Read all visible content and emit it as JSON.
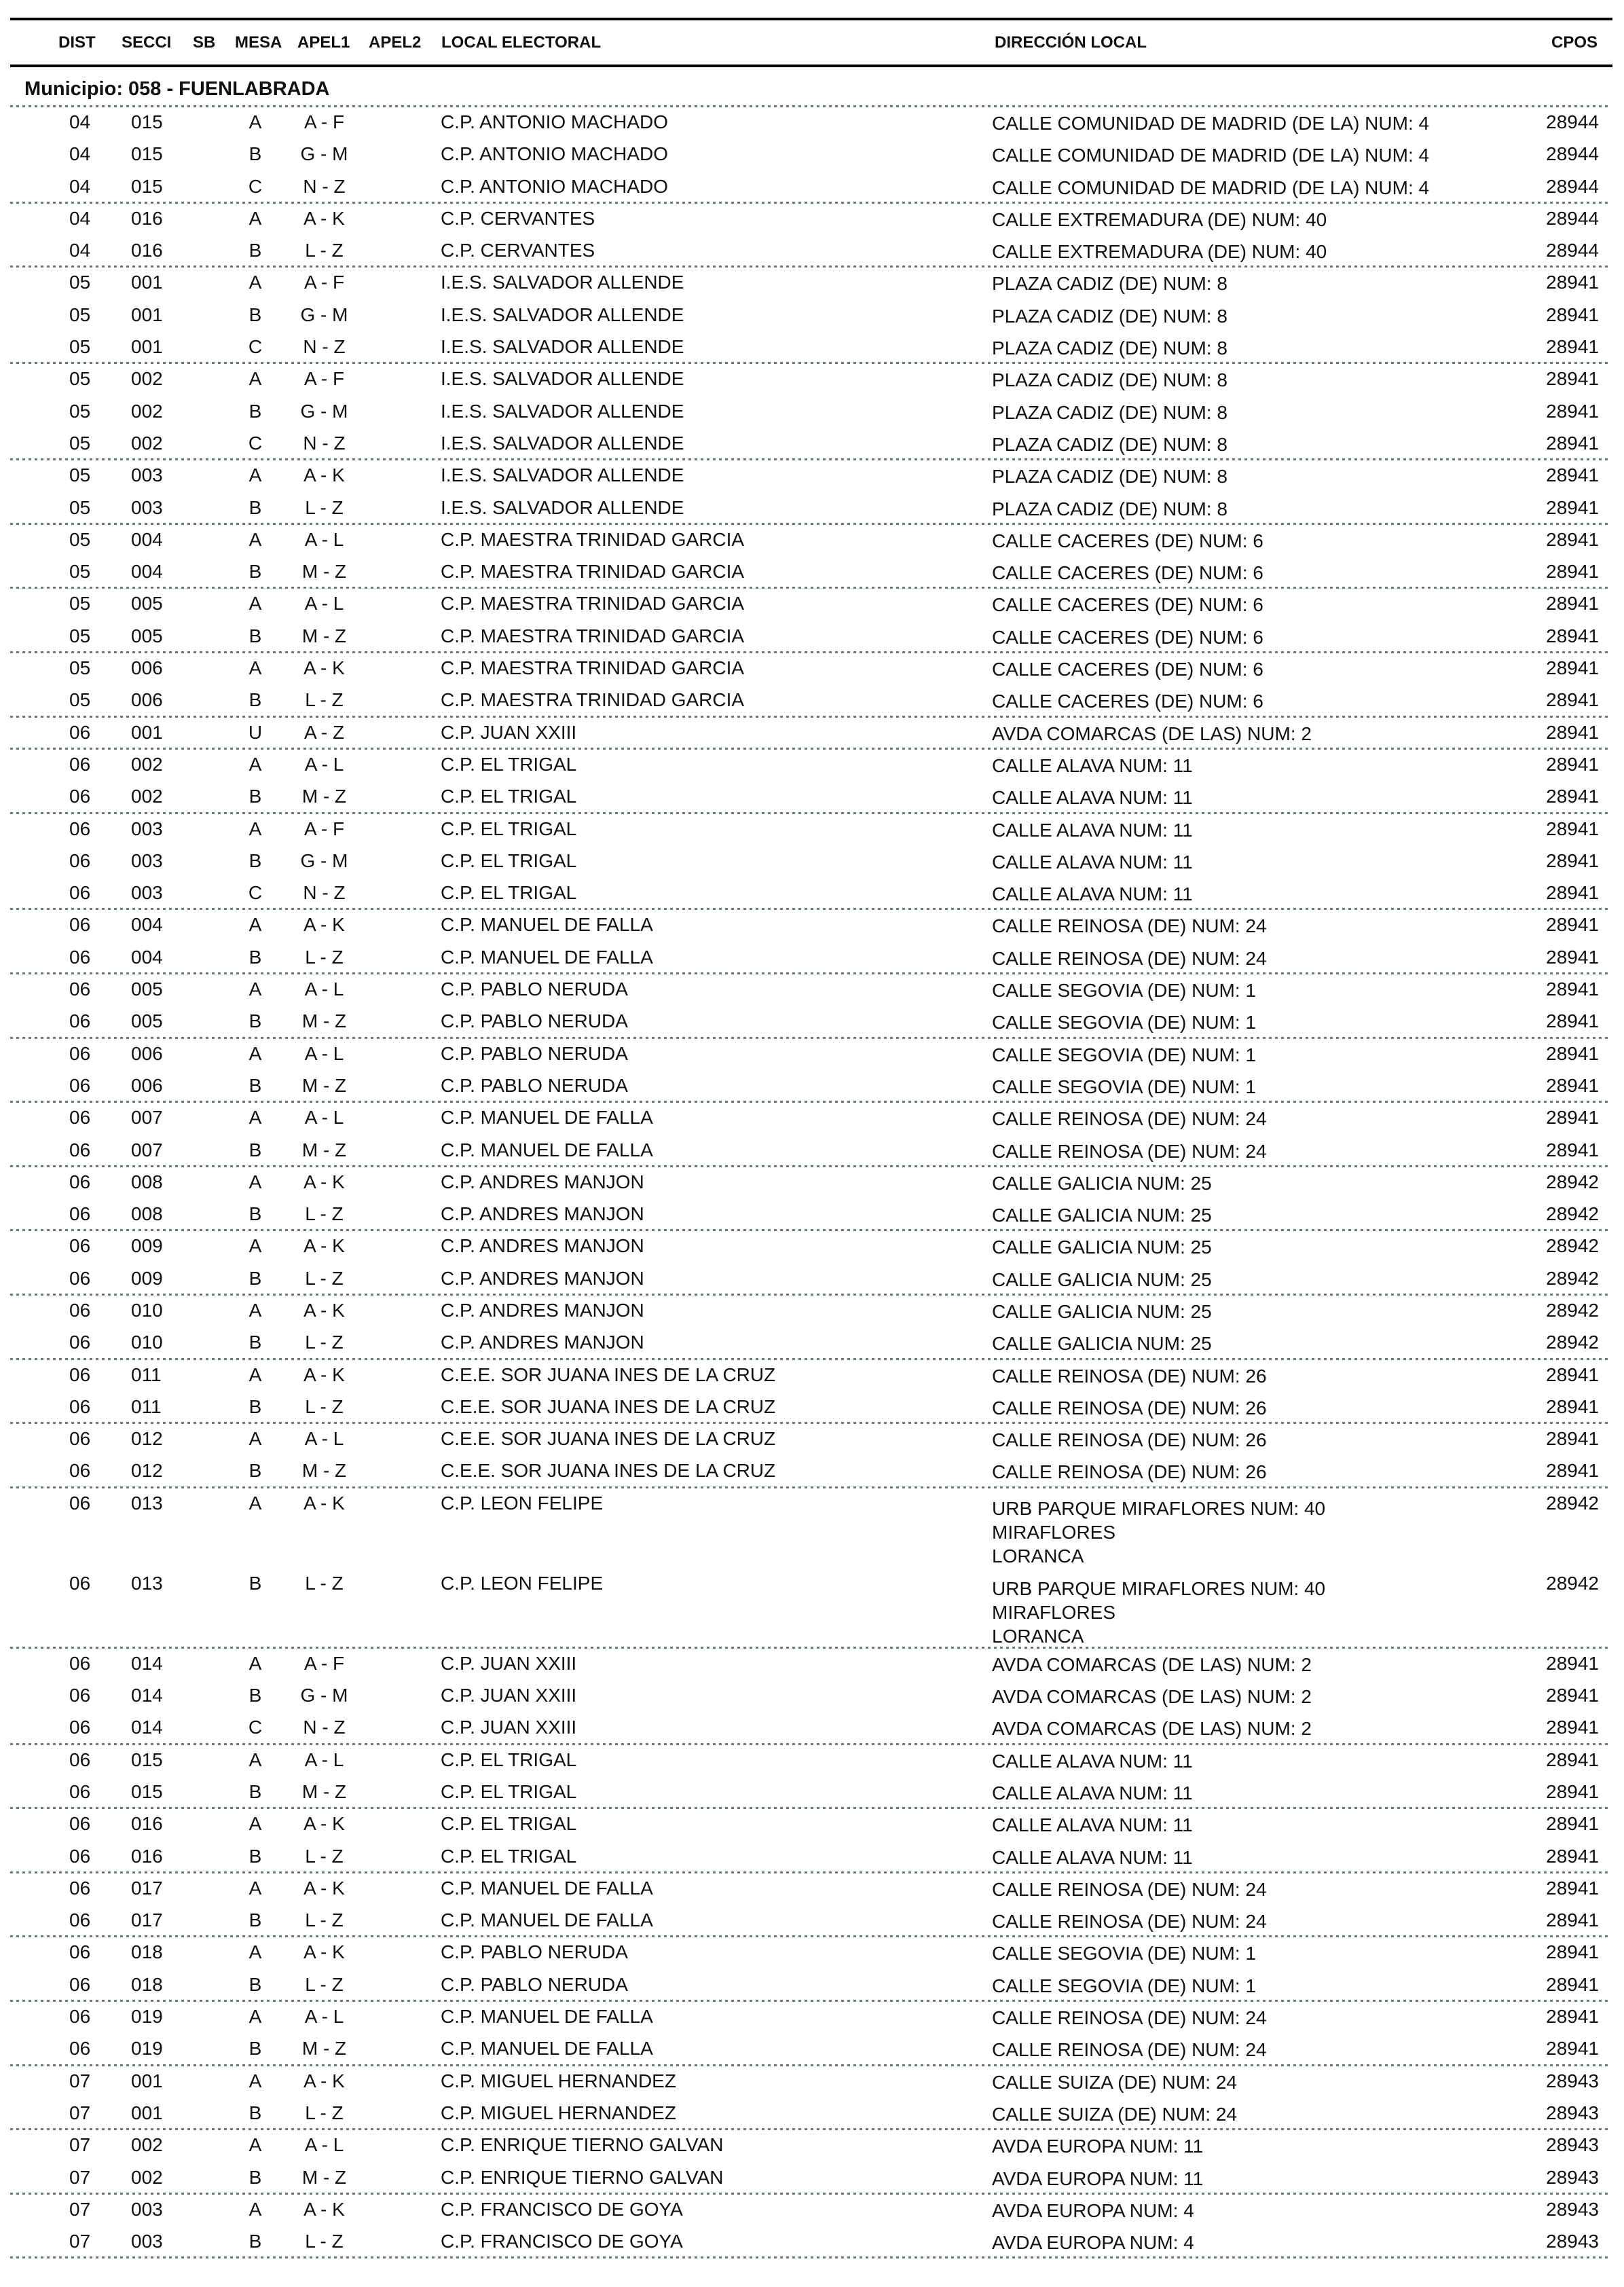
{
  "header": {
    "columns": [
      "DIST",
      "SECCI",
      "SB",
      "MESA",
      "APEL1",
      "APEL2",
      "LOCAL ELECTORAL",
      "DIRECCIÓN LOCAL",
      "CPOS"
    ]
  },
  "municipio": "Municipio:  058 - FUENLABRADA",
  "rows": [
    {
      "dist": "04",
      "secci": "015",
      "mesa": "A",
      "apel1": "A - F",
      "local": "C.P. ANTONIO MACHADO",
      "dir": [
        "CALLE COMUNIDAD DE MADRID (DE LA) NUM: 4"
      ],
      "cpos": "28944"
    },
    {
      "dist": "04",
      "secci": "015",
      "mesa": "B",
      "apel1": "G - M",
      "local": "C.P. ANTONIO MACHADO",
      "dir": [
        "CALLE COMUNIDAD DE MADRID (DE LA) NUM: 4"
      ],
      "cpos": "28944"
    },
    {
      "dist": "04",
      "secci": "015",
      "mesa": "C",
      "apel1": "N - Z",
      "local": "C.P. ANTONIO MACHADO",
      "dir": [
        "CALLE COMUNIDAD DE MADRID (DE LA) NUM: 4"
      ],
      "cpos": "28944"
    },
    {
      "dist": "04",
      "secci": "016",
      "mesa": "A",
      "apel1": "A - K",
      "local": "C.P. CERVANTES",
      "dir": [
        "CALLE EXTREMADURA (DE) NUM: 40"
      ],
      "cpos": "28944"
    },
    {
      "dist": "04",
      "secci": "016",
      "mesa": "B",
      "apel1": "L - Z",
      "local": "C.P. CERVANTES",
      "dir": [
        "CALLE EXTREMADURA (DE) NUM: 40"
      ],
      "cpos": "28944"
    },
    {
      "dist": "05",
      "secci": "001",
      "mesa": "A",
      "apel1": "A - F",
      "local": "I.E.S. SALVADOR ALLENDE",
      "dir": [
        "PLAZA CADIZ (DE) NUM: 8"
      ],
      "cpos": "28941"
    },
    {
      "dist": "05",
      "secci": "001",
      "mesa": "B",
      "apel1": "G - M",
      "local": "I.E.S. SALVADOR ALLENDE",
      "dir": [
        "PLAZA CADIZ (DE) NUM: 8"
      ],
      "cpos": "28941"
    },
    {
      "dist": "05",
      "secci": "001",
      "mesa": "C",
      "apel1": "N - Z",
      "local": "I.E.S. SALVADOR ALLENDE",
      "dir": [
        "PLAZA CADIZ (DE) NUM: 8"
      ],
      "cpos": "28941"
    },
    {
      "dist": "05",
      "secci": "002",
      "mesa": "A",
      "apel1": "A - F",
      "local": "I.E.S. SALVADOR ALLENDE",
      "dir": [
        "PLAZA CADIZ (DE) NUM: 8"
      ],
      "cpos": "28941"
    },
    {
      "dist": "05",
      "secci": "002",
      "mesa": "B",
      "apel1": "G - M",
      "local": "I.E.S. SALVADOR ALLENDE",
      "dir": [
        "PLAZA CADIZ (DE) NUM: 8"
      ],
      "cpos": "28941"
    },
    {
      "dist": "05",
      "secci": "002",
      "mesa": "C",
      "apel1": "N - Z",
      "local": "I.E.S. SALVADOR ALLENDE",
      "dir": [
        "PLAZA CADIZ (DE) NUM: 8"
      ],
      "cpos": "28941"
    },
    {
      "dist": "05",
      "secci": "003",
      "mesa": "A",
      "apel1": "A - K",
      "local": "I.E.S. SALVADOR ALLENDE",
      "dir": [
        "PLAZA CADIZ (DE) NUM: 8"
      ],
      "cpos": "28941"
    },
    {
      "dist": "05",
      "secci": "003",
      "mesa": "B",
      "apel1": "L - Z",
      "local": "I.E.S. SALVADOR ALLENDE",
      "dir": [
        "PLAZA CADIZ (DE) NUM: 8"
      ],
      "cpos": "28941"
    },
    {
      "dist": "05",
      "secci": "004",
      "mesa": "A",
      "apel1": "A - L",
      "local": "C.P. MAESTRA TRINIDAD GARCIA",
      "dir": [
        "CALLE CACERES (DE) NUM: 6"
      ],
      "cpos": "28941"
    },
    {
      "dist": "05",
      "secci": "004",
      "mesa": "B",
      "apel1": "M - Z",
      "local": "C.P. MAESTRA TRINIDAD GARCIA",
      "dir": [
        "CALLE CACERES (DE) NUM: 6"
      ],
      "cpos": "28941"
    },
    {
      "dist": "05",
      "secci": "005",
      "mesa": "A",
      "apel1": "A - L",
      "local": "C.P. MAESTRA TRINIDAD GARCIA",
      "dir": [
        "CALLE CACERES (DE) NUM: 6"
      ],
      "cpos": "28941"
    },
    {
      "dist": "05",
      "secci": "005",
      "mesa": "B",
      "apel1": "M - Z",
      "local": "C.P. MAESTRA TRINIDAD GARCIA",
      "dir": [
        "CALLE CACERES (DE) NUM: 6"
      ],
      "cpos": "28941"
    },
    {
      "dist": "05",
      "secci": "006",
      "mesa": "A",
      "apel1": "A - K",
      "local": "C.P. MAESTRA TRINIDAD GARCIA",
      "dir": [
        "CALLE CACERES (DE) NUM: 6"
      ],
      "cpos": "28941"
    },
    {
      "dist": "05",
      "secci": "006",
      "mesa": "B",
      "apel1": "L - Z",
      "local": "C.P. MAESTRA TRINIDAD GARCIA",
      "dir": [
        "CALLE CACERES (DE) NUM: 6"
      ],
      "cpos": "28941"
    },
    {
      "dist": "06",
      "secci": "001",
      "mesa": "U",
      "apel1": "A - Z",
      "local": "C.P. JUAN XXIII",
      "dir": [
        "AVDA COMARCAS (DE LAS) NUM: 2"
      ],
      "cpos": "28941"
    },
    {
      "dist": "06",
      "secci": "002",
      "mesa": "A",
      "apel1": "A - L",
      "local": "C.P. EL TRIGAL",
      "dir": [
        "CALLE ALAVA NUM: 11"
      ],
      "cpos": "28941"
    },
    {
      "dist": "06",
      "secci": "002",
      "mesa": "B",
      "apel1": "M - Z",
      "local": "C.P. EL TRIGAL",
      "dir": [
        "CALLE ALAVA NUM: 11"
      ],
      "cpos": "28941"
    },
    {
      "dist": "06",
      "secci": "003",
      "mesa": "A",
      "apel1": "A - F",
      "local": "C.P. EL TRIGAL",
      "dir": [
        "CALLE ALAVA NUM: 11"
      ],
      "cpos": "28941"
    },
    {
      "dist": "06",
      "secci": "003",
      "mesa": "B",
      "apel1": "G - M",
      "local": "C.P. EL TRIGAL",
      "dir": [
        "CALLE ALAVA NUM: 11"
      ],
      "cpos": "28941"
    },
    {
      "dist": "06",
      "secci": "003",
      "mesa": "C",
      "apel1": "N - Z",
      "local": "C.P. EL TRIGAL",
      "dir": [
        "CALLE ALAVA NUM: 11"
      ],
      "cpos": "28941"
    },
    {
      "dist": "06",
      "secci": "004",
      "mesa": "A",
      "apel1": "A - K",
      "local": "C.P. MANUEL DE FALLA",
      "dir": [
        "CALLE REINOSA (DE) NUM: 24"
      ],
      "cpos": "28941"
    },
    {
      "dist": "06",
      "secci": "004",
      "mesa": "B",
      "apel1": "L - Z",
      "local": "C.P. MANUEL DE FALLA",
      "dir": [
        "CALLE REINOSA (DE) NUM: 24"
      ],
      "cpos": "28941"
    },
    {
      "dist": "06",
      "secci": "005",
      "mesa": "A",
      "apel1": "A - L",
      "local": "C.P. PABLO NERUDA",
      "dir": [
        "CALLE SEGOVIA (DE) NUM: 1"
      ],
      "cpos": "28941"
    },
    {
      "dist": "06",
      "secci": "005",
      "mesa": "B",
      "apel1": "M - Z",
      "local": "C.P. PABLO NERUDA",
      "dir": [
        "CALLE SEGOVIA (DE) NUM: 1"
      ],
      "cpos": "28941"
    },
    {
      "dist": "06",
      "secci": "006",
      "mesa": "A",
      "apel1": "A - L",
      "local": "C.P. PABLO NERUDA",
      "dir": [
        "CALLE SEGOVIA (DE) NUM: 1"
      ],
      "cpos": "28941"
    },
    {
      "dist": "06",
      "secci": "006",
      "mesa": "B",
      "apel1": "M - Z",
      "local": "C.P. PABLO NERUDA",
      "dir": [
        "CALLE SEGOVIA (DE) NUM: 1"
      ],
      "cpos": "28941"
    },
    {
      "dist": "06",
      "secci": "007",
      "mesa": "A",
      "apel1": "A - L",
      "local": "C.P. MANUEL DE FALLA",
      "dir": [
        "CALLE REINOSA (DE) NUM: 24"
      ],
      "cpos": "28941"
    },
    {
      "dist": "06",
      "secci": "007",
      "mesa": "B",
      "apel1": "M - Z",
      "local": "C.P. MANUEL DE FALLA",
      "dir": [
        "CALLE REINOSA (DE) NUM: 24"
      ],
      "cpos": "28941"
    },
    {
      "dist": "06",
      "secci": "008",
      "mesa": "A",
      "apel1": "A - K",
      "local": "C.P. ANDRES MANJON",
      "dir": [
        "CALLE GALICIA NUM: 25"
      ],
      "cpos": "28942"
    },
    {
      "dist": "06",
      "secci": "008",
      "mesa": "B",
      "apel1": "L - Z",
      "local": "C.P. ANDRES MANJON",
      "dir": [
        "CALLE GALICIA NUM: 25"
      ],
      "cpos": "28942"
    },
    {
      "dist": "06",
      "secci": "009",
      "mesa": "A",
      "apel1": "A - K",
      "local": "C.P. ANDRES MANJON",
      "dir": [
        "CALLE GALICIA NUM: 25"
      ],
      "cpos": "28942"
    },
    {
      "dist": "06",
      "secci": "009",
      "mesa": "B",
      "apel1": "L - Z",
      "local": "C.P. ANDRES MANJON",
      "dir": [
        "CALLE GALICIA NUM: 25"
      ],
      "cpos": "28942"
    },
    {
      "dist": "06",
      "secci": "010",
      "mesa": "A",
      "apel1": "A - K",
      "local": "C.P. ANDRES MANJON",
      "dir": [
        "CALLE GALICIA NUM: 25"
      ],
      "cpos": "28942"
    },
    {
      "dist": "06",
      "secci": "010",
      "mesa": "B",
      "apel1": "L - Z",
      "local": "C.P. ANDRES MANJON",
      "dir": [
        "CALLE GALICIA NUM: 25"
      ],
      "cpos": "28942"
    },
    {
      "dist": "06",
      "secci": "011",
      "mesa": "A",
      "apel1": "A - K",
      "local": "C.E.E. SOR JUANA INES DE LA CRUZ",
      "dir": [
        "CALLE REINOSA (DE) NUM: 26"
      ],
      "cpos": "28941"
    },
    {
      "dist": "06",
      "secci": "011",
      "mesa": "B",
      "apel1": "L - Z",
      "local": "C.E.E. SOR JUANA INES DE LA CRUZ",
      "dir": [
        "CALLE REINOSA (DE) NUM: 26"
      ],
      "cpos": "28941"
    },
    {
      "dist": "06",
      "secci": "012",
      "mesa": "A",
      "apel1": "A - L",
      "local": "C.E.E. SOR JUANA INES DE LA CRUZ",
      "dir": [
        "CALLE REINOSA (DE) NUM: 26"
      ],
      "cpos": "28941"
    },
    {
      "dist": "06",
      "secci": "012",
      "mesa": "B",
      "apel1": "M - Z",
      "local": "C.E.E. SOR JUANA INES DE LA CRUZ",
      "dir": [
        "CALLE REINOSA (DE) NUM: 26"
      ],
      "cpos": "28941"
    },
    {
      "dist": "06",
      "secci": "013",
      "mesa": "A",
      "apel1": "A - K",
      "local": "C.P. LEON FELIPE",
      "dir": [
        "URB PARQUE MIRAFLORES NUM: 40",
        "MIRAFLORES",
        "LORANCA"
      ],
      "cpos": "28942"
    },
    {
      "dist": "06",
      "secci": "013",
      "mesa": "B",
      "apel1": "L - Z",
      "local": "C.P. LEON FELIPE",
      "dir": [
        "URB PARQUE MIRAFLORES NUM: 40",
        "MIRAFLORES",
        "LORANCA"
      ],
      "cpos": "28942"
    },
    {
      "dist": "06",
      "secci": "014",
      "mesa": "A",
      "apel1": "A - F",
      "local": "C.P. JUAN XXIII",
      "dir": [
        "AVDA COMARCAS (DE LAS) NUM: 2"
      ],
      "cpos": "28941"
    },
    {
      "dist": "06",
      "secci": "014",
      "mesa": "B",
      "apel1": "G - M",
      "local": "C.P. JUAN XXIII",
      "dir": [
        "AVDA COMARCAS (DE LAS) NUM: 2"
      ],
      "cpos": "28941"
    },
    {
      "dist": "06",
      "secci": "014",
      "mesa": "C",
      "apel1": "N - Z",
      "local": "C.P. JUAN XXIII",
      "dir": [
        "AVDA COMARCAS (DE LAS) NUM: 2"
      ],
      "cpos": "28941"
    },
    {
      "dist": "06",
      "secci": "015",
      "mesa": "A",
      "apel1": "A - L",
      "local": "C.P. EL TRIGAL",
      "dir": [
        "CALLE ALAVA NUM: 11"
      ],
      "cpos": "28941"
    },
    {
      "dist": "06",
      "secci": "015",
      "mesa": "B",
      "apel1": "M - Z",
      "local": "C.P. EL TRIGAL",
      "dir": [
        "CALLE ALAVA NUM: 11"
      ],
      "cpos": "28941"
    },
    {
      "dist": "06",
      "secci": "016",
      "mesa": "A",
      "apel1": "A - K",
      "local": "C.P. EL TRIGAL",
      "dir": [
        "CALLE ALAVA NUM: 11"
      ],
      "cpos": "28941"
    },
    {
      "dist": "06",
      "secci": "016",
      "mesa": "B",
      "apel1": "L - Z",
      "local": "C.P. EL TRIGAL",
      "dir": [
        "CALLE ALAVA NUM: 11"
      ],
      "cpos": "28941"
    },
    {
      "dist": "06",
      "secci": "017",
      "mesa": "A",
      "apel1": "A - K",
      "local": "C.P. MANUEL DE FALLA",
      "dir": [
        "CALLE REINOSA (DE) NUM: 24"
      ],
      "cpos": "28941"
    },
    {
      "dist": "06",
      "secci": "017",
      "mesa": "B",
      "apel1": "L - Z",
      "local": "C.P. MANUEL DE FALLA",
      "dir": [
        "CALLE REINOSA (DE) NUM: 24"
      ],
      "cpos": "28941"
    },
    {
      "dist": "06",
      "secci": "018",
      "mesa": "A",
      "apel1": "A - K",
      "local": "C.P. PABLO NERUDA",
      "dir": [
        "CALLE SEGOVIA (DE) NUM: 1"
      ],
      "cpos": "28941"
    },
    {
      "dist": "06",
      "secci": "018",
      "mesa": "B",
      "apel1": "L - Z",
      "local": "C.P. PABLO NERUDA",
      "dir": [
        "CALLE SEGOVIA (DE) NUM: 1"
      ],
      "cpos": "28941"
    },
    {
      "dist": "06",
      "secci": "019",
      "mesa": "A",
      "apel1": "A - L",
      "local": "C.P. MANUEL DE FALLA",
      "dir": [
        "CALLE REINOSA (DE) NUM: 24"
      ],
      "cpos": "28941"
    },
    {
      "dist": "06",
      "secci": "019",
      "mesa": "B",
      "apel1": "M - Z",
      "local": "C.P. MANUEL DE FALLA",
      "dir": [
        "CALLE REINOSA (DE) NUM: 24"
      ],
      "cpos": "28941"
    },
    {
      "dist": "07",
      "secci": "001",
      "mesa": "A",
      "apel1": "A - K",
      "local": "C.P. MIGUEL HERNANDEZ",
      "dir": [
        "CALLE SUIZA (DE) NUM: 24"
      ],
      "cpos": "28943"
    },
    {
      "dist": "07",
      "secci": "001",
      "mesa": "B",
      "apel1": "L - Z",
      "local": "C.P. MIGUEL HERNANDEZ",
      "dir": [
        "CALLE SUIZA (DE) NUM: 24"
      ],
      "cpos": "28943"
    },
    {
      "dist": "07",
      "secci": "002",
      "mesa": "A",
      "apel1": "A - L",
      "local": "C.P. ENRIQUE TIERNO GALVAN",
      "dir": [
        "AVDA EUROPA NUM: 11"
      ],
      "cpos": "28943"
    },
    {
      "dist": "07",
      "secci": "002",
      "mesa": "B",
      "apel1": "M - Z",
      "local": "C.P. ENRIQUE TIERNO GALVAN",
      "dir": [
        "AVDA EUROPA NUM: 11"
      ],
      "cpos": "28943"
    },
    {
      "dist": "07",
      "secci": "003",
      "mesa": "A",
      "apel1": "A - K",
      "local": "C.P. FRANCISCO DE GOYA",
      "dir": [
        "AVDA EUROPA NUM: 4"
      ],
      "cpos": "28943"
    },
    {
      "dist": "07",
      "secci": "003",
      "mesa": "B",
      "apel1": "L - Z",
      "local": "C.P. FRANCISCO DE GOYA",
      "dir": [
        "AVDA EUROPA NUM: 4"
      ],
      "cpos": "28943"
    }
  ]
}
